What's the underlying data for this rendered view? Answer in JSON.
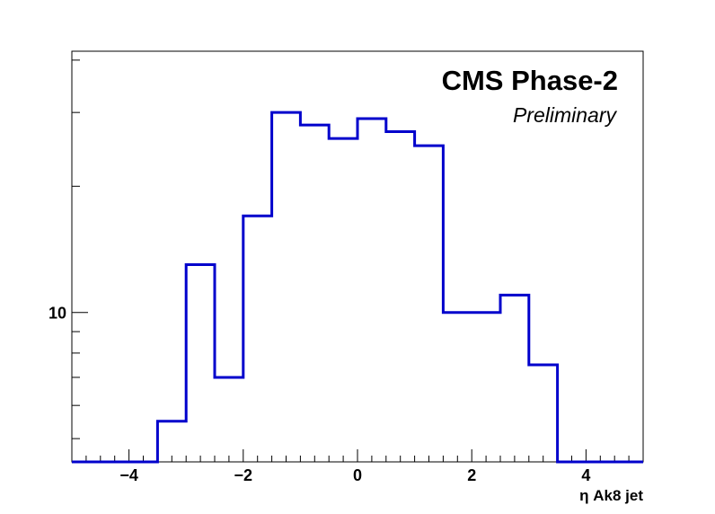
{
  "chart_data": {
    "type": "histogram",
    "title": "CMS Phase-2",
    "subtitle": "Preliminary",
    "xlabel": "η Ak8 jet",
    "ylabel": "",
    "y_scale": "log",
    "xlim": [
      -5,
      5
    ],
    "ylim": [
      4.4,
      42
    ],
    "bin_edges": [
      -5,
      -4.5,
      -4,
      -3.5,
      -3,
      -2.5,
      -2,
      -1.5,
      -1,
      -0.5,
      0,
      0.5,
      1,
      1.5,
      2,
      2.5,
      3,
      3.5,
      4,
      4.5,
      5
    ],
    "values": [
      0,
      0,
      0,
      5.5,
      13,
      7,
      17,
      30,
      28,
      26,
      29,
      27,
      25,
      10,
      10,
      11,
      7.5,
      0,
      0,
      0
    ],
    "x_ticks": [
      -4,
      -2,
      0,
      2,
      4
    ],
    "x_tick_labels": [
      "−4",
      "−2",
      "0",
      "2",
      "4"
    ],
    "y_ticks": [
      10
    ],
    "y_tick_labels": [
      "10"
    ],
    "line_color": "#0000cc",
    "grid": false,
    "legend": "none"
  }
}
